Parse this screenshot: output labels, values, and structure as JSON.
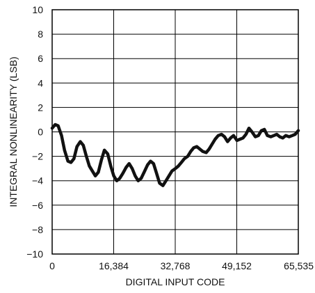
{
  "chart_data": {
    "type": "line",
    "title": "",
    "xlabel": "DIGITAL INPUT CODE",
    "ylabel": "INTEGRAL NONLINEARITY (LSB)",
    "xlim": [
      0,
      65535
    ],
    "ylim": [
      -10,
      10
    ],
    "x_ticks": [
      0,
      16384,
      32768,
      49152,
      65535
    ],
    "x_tick_labels": [
      "0",
      "16,384",
      "32,768",
      "49,152",
      "65,535"
    ],
    "y_ticks": [
      -10,
      -8,
      -6,
      -4,
      -2,
      0,
      2,
      4,
      6,
      8,
      10
    ],
    "y_tick_labels": [
      "−10",
      "−8",
      "−6",
      "−4",
      "−2",
      "0",
      "2",
      "4",
      "6",
      "8",
      "10"
    ],
    "grid": true,
    "legend": "none",
    "line_color": "#111111",
    "series": [
      {
        "x": [
          0,
          800,
          1600,
          2500,
          3300,
          4200,
          5000,
          5800,
          6600,
          7500,
          8300,
          9100,
          9900,
          10700,
          11500,
          12300,
          13100,
          13900,
          14800,
          15600,
          16400,
          17200,
          18000,
          18800,
          19700,
          20500,
          21300,
          22100,
          22900,
          23700,
          24500,
          25400,
          26200,
          27000,
          27800,
          28600,
          29500,
          30300,
          31100,
          31900,
          32800,
          33600,
          34400,
          35200,
          36100,
          36900,
          37700,
          38500,
          39300,
          40100,
          41000,
          41800,
          42600,
          43400,
          44200,
          45100,
          45900,
          46700,
          47500,
          48300,
          49200,
          50000,
          50800,
          51600,
          52400,
          53200,
          54100,
          54900,
          55700,
          56500,
          57300,
          58200,
          59000,
          59800,
          60600,
          61400,
          62200,
          63100,
          63900,
          64700,
          65535
        ],
        "y": [
          0.3,
          0.6,
          0.5,
          -0.3,
          -1.5,
          -2.4,
          -2.5,
          -2.2,
          -1.2,
          -0.8,
          -1.1,
          -2.0,
          -2.8,
          -3.2,
          -3.6,
          -3.3,
          -2.3,
          -1.5,
          -1.8,
          -2.8,
          -3.6,
          -4.0,
          -3.8,
          -3.4,
          -2.9,
          -2.6,
          -3.0,
          -3.6,
          -4.0,
          -3.8,
          -3.3,
          -2.7,
          -2.4,
          -2.6,
          -3.4,
          -4.2,
          -4.4,
          -4.0,
          -3.6,
          -3.2,
          -3.0,
          -2.8,
          -2.5,
          -2.2,
          -2.0,
          -1.6,
          -1.3,
          -1.2,
          -1.4,
          -1.6,
          -1.7,
          -1.4,
          -1.0,
          -0.6,
          -0.3,
          -0.2,
          -0.4,
          -0.8,
          -0.5,
          -0.3,
          -0.7,
          -0.6,
          -0.5,
          -0.2,
          0.3,
          0.0,
          -0.4,
          -0.3,
          0.1,
          0.2,
          -0.3,
          -0.4,
          -0.3,
          -0.2,
          -0.4,
          -0.5,
          -0.3,
          -0.4,
          -0.3,
          -0.2,
          0.1
        ]
      }
    ]
  }
}
